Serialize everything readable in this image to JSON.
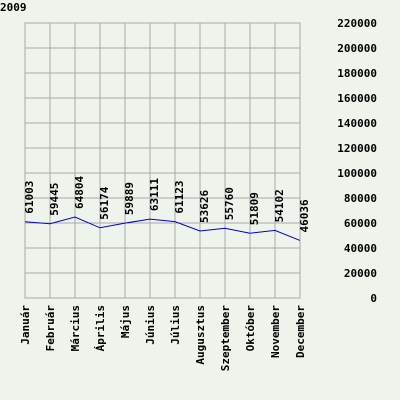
{
  "chart_data": {
    "type": "line",
    "title": "2009",
    "categories": [
      "Január",
      "Február",
      "Március",
      "Április",
      "Május",
      "Június",
      "Július",
      "Augusztus",
      "Szeptember",
      "Október",
      "November",
      "December"
    ],
    "series": [
      {
        "name": null,
        "color": "#0000cc",
        "values": [
          61003,
          59445,
          64804,
          56174,
          59889,
          63111,
          61123,
          53626,
          55760,
          51809,
          54102,
          46036
        ]
      }
    ],
    "ylim": [
      0,
      220000
    ],
    "yticks": [
      0,
      20000,
      40000,
      60000,
      80000,
      100000,
      120000,
      140000,
      160000,
      180000,
      200000,
      220000
    ],
    "grid": true
  }
}
